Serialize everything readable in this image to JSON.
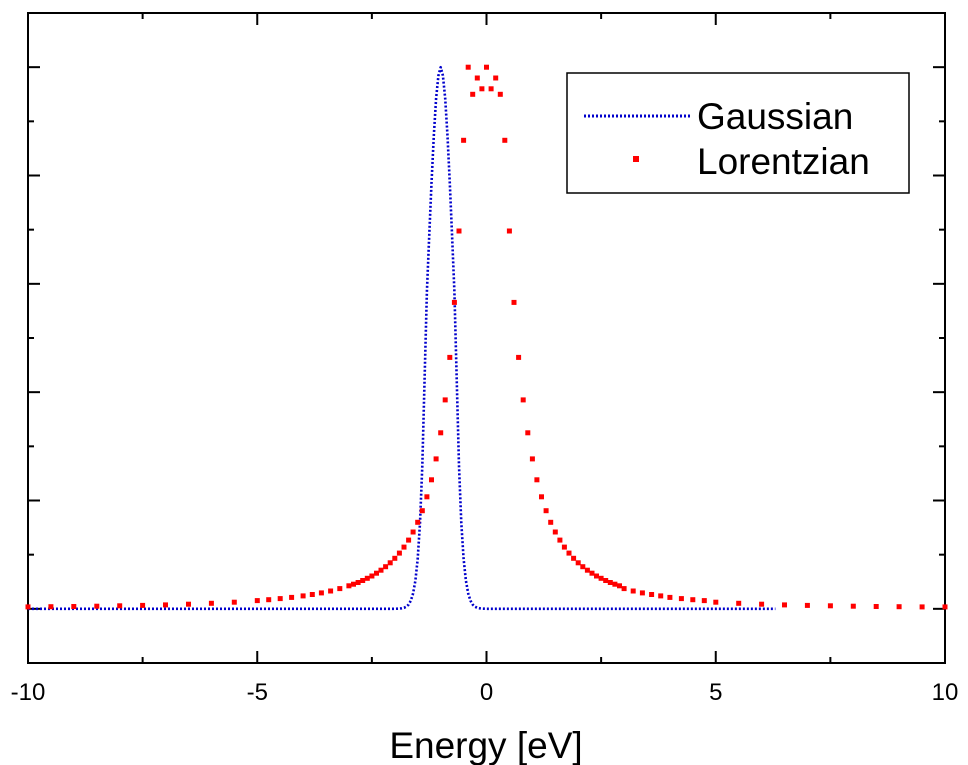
{
  "chart_data": {
    "type": "line",
    "title": "",
    "xlabel": "Energy [eV]",
    "ylabel": "",
    "xlim": [
      -10,
      10
    ],
    "ylim": [
      -0.1,
      1.1
    ],
    "x_ticks": [
      -10,
      -5,
      0,
      5,
      10
    ],
    "x_tick_labels": [
      "-10",
      "-5",
      "0",
      "5",
      "10"
    ],
    "y_tick_labels_shown": false,
    "grid": false,
    "legend_position": "top-right",
    "series": [
      {
        "name": "Gaussian",
        "style": "dotted-line",
        "color": "#0000cc",
        "x_start": -10,
        "x_step": 0.05,
        "values": [
          0,
          0,
          0,
          0,
          0,
          0,
          0,
          0,
          0,
          0,
          0,
          0,
          0,
          0,
          0,
          0,
          0,
          0,
          0,
          0,
          0,
          0,
          0,
          0,
          0,
          0,
          0,
          0,
          0,
          0,
          0,
          0,
          0,
          0,
          0,
          0,
          0,
          0,
          0,
          0,
          0,
          0,
          0,
          0,
          0,
          0,
          0,
          0,
          0,
          0,
          0,
          0,
          0,
          0,
          0,
          0,
          0,
          0,
          0,
          0,
          0,
          0,
          0,
          0,
          0,
          0,
          0,
          0,
          0,
          0,
          0,
          0,
          0,
          0,
          0,
          0,
          0,
          0,
          0,
          0,
          0,
          0,
          0,
          0,
          0,
          0,
          0,
          0,
          0,
          0,
          0,
          0,
          0,
          0,
          0,
          0,
          0,
          0,
          0,
          0,
          0,
          0,
          0,
          0,
          0,
          0,
          0,
          0,
          0,
          0,
          0,
          0,
          0,
          0,
          0,
          0,
          0,
          0,
          0,
          0,
          0,
          0,
          0,
          0,
          0,
          0,
          0,
          0,
          0,
          0,
          0,
          0,
          0,
          0,
          0,
          0,
          0,
          0,
          0,
          0,
          0,
          0,
          0,
          0,
          0,
          0,
          0,
          0,
          0,
          0,
          0,
          0,
          0,
          0,
          0,
          0,
          0,
          0,
          0,
          0,
          0.0001,
          0.0002,
          0.0004,
          0.0009,
          0.0019,
          0.0039,
          0.0078,
          0.0151,
          0.0285,
          0.0521,
          0.0923,
          0.1585,
          0.2637,
          0.4249,
          0.5857,
          0.6877,
          0.7858,
          0.8731,
          0.9423,
          0.9845,
          1,
          0.9845,
          0.9423,
          0.8731,
          0.7858,
          0.6877,
          0.5857,
          0.4249,
          0.2637,
          0.1585,
          0.0923,
          0.0521,
          0.0285,
          0.0151,
          0.0078,
          0.0039,
          0.0019,
          0.0009,
          0.0004,
          0.0002,
          0.0001,
          0,
          0,
          0,
          0,
          0,
          0,
          0,
          0,
          0,
          0,
          0,
          0,
          0,
          0,
          0,
          0,
          0,
          0,
          0,
          0,
          0,
          0,
          0,
          0,
          0,
          0,
          0,
          0,
          0,
          0,
          0,
          0,
          0,
          0,
          0,
          0,
          0,
          0,
          0,
          0,
          0,
          0,
          0,
          0,
          0,
          0,
          0,
          0,
          0,
          0,
          0,
          0,
          0,
          0,
          0,
          0,
          0,
          0,
          0,
          0,
          0,
          0,
          0,
          0,
          0,
          0,
          0,
          0,
          0,
          0,
          0,
          0,
          0,
          0,
          0,
          0,
          0,
          0,
          0,
          0,
          0,
          0,
          0,
          0,
          0,
          0,
          0,
          0,
          0,
          0,
          0,
          0,
          0,
          0,
          0,
          0,
          0,
          0,
          0,
          0,
          0,
          0,
          0,
          0,
          0,
          0,
          0,
          0,
          0,
          0,
          0,
          0,
          0,
          0,
          0,
          0,
          0,
          0,
          0,
          0,
          0,
          0,
          0,
          0,
          0,
          0
        ]
      },
      {
        "name": "Lorentzian",
        "style": "markers",
        "color": "#ff0000",
        "x": [
          -10,
          -9.5,
          -9,
          -8.5,
          -8,
          -7.5,
          -7,
          -6.5,
          -6,
          -5.5,
          -5,
          -4.75,
          -4.5,
          -4.25,
          -4,
          -3.8,
          -3.6,
          -3.4,
          -3.2,
          -3,
          -2.9,
          -2.8,
          -2.7,
          -2.6,
          -2.5,
          -2.4,
          -2.3,
          -2.2,
          -2.1,
          -2,
          -1.9,
          -1.8,
          -1.7,
          -1.6,
          -1.5,
          -1.4,
          -1.3,
          -1.2,
          -1.1,
          -1,
          -0.9,
          -0.8,
          -0.7,
          -0.6,
          -0.5,
          -0.4,
          -0.3,
          -0.2,
          -0.1,
          0,
          0.1,
          0.2,
          0.3,
          0.4,
          0.5,
          0.6,
          0.7,
          0.8,
          0.9,
          1,
          1.1,
          1.2,
          1.3,
          1.4,
          1.5,
          1.6,
          1.7,
          1.8,
          1.9,
          2,
          2.1,
          2.2,
          2.3,
          2.4,
          2.5,
          2.6,
          2.7,
          2.8,
          2.9,
          3,
          3.2,
          3.4,
          3.6,
          3.8,
          4,
          4.25,
          4.5,
          4.75,
          5,
          5.5,
          6,
          6.5,
          7,
          7.5,
          8,
          8.5,
          9,
          9.5,
          10
        ],
        "values": [
          0.0036,
          0.004,
          0.0044,
          0.0049,
          0.0056,
          0.0064,
          0.0073,
          0.0086,
          0.0102,
          0.0123,
          0.0152,
          0.0169,
          0.0189,
          0.0212,
          0.0239,
          0.0264,
          0.0294,
          0.033,
          0.0373,
          0.0425,
          0.0454,
          0.0487,
          0.0523,
          0.0563,
          0.0607,
          0.0657,
          0.0713,
          0.0777,
          0.085,
          0.0933,
          0.1028,
          0.1139,
          0.1268,
          0.1419,
          0.1597,
          0.1811,
          0.2069,
          0.2382,
          0.2768,
          0.3249,
          0.3858,
          0.4641,
          0.5657,
          0.6975,
          0.8649,
          1.0,
          0.95,
          0.98,
          0.96,
          1.0,
          0.96,
          0.98,
          0.95,
          0.8649,
          0.6975,
          0.5657,
          0.4641,
          0.3858,
          0.3249,
          0.2768,
          0.2382,
          0.2069,
          0.1811,
          0.1597,
          0.1419,
          0.1268,
          0.1139,
          0.1028,
          0.0933,
          0.085,
          0.0777,
          0.0713,
          0.0657,
          0.0607,
          0.0563,
          0.0523,
          0.0487,
          0.0454,
          0.0425,
          0.0373,
          0.033,
          0.0294,
          0.0264,
          0.0239,
          0.0212,
          0.0189,
          0.0169,
          0.0152,
          0.0123,
          0.0102,
          0.0086,
          0.0073,
          0.0064,
          0.0056,
          0.0049,
          0.0044,
          0.004,
          0.0036,
          0.0036
        ]
      }
    ]
  }
}
